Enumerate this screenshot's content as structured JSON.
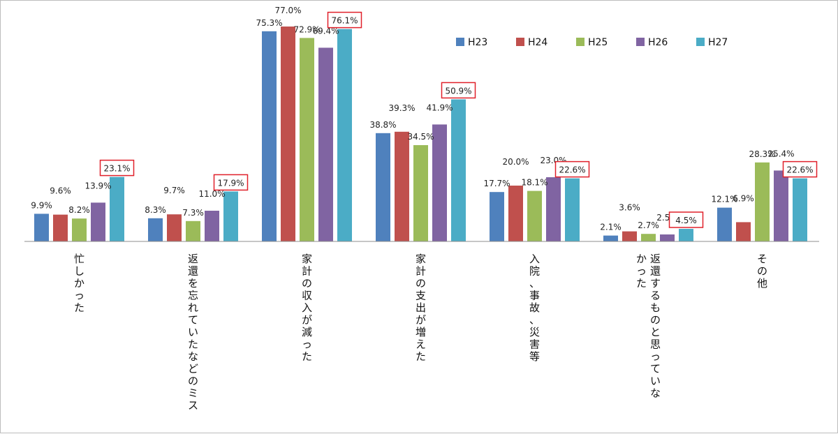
{
  "chart_data": {
    "type": "bar",
    "categories": [
      "忙しかった",
      "返還を忘れていたなどのミス",
      "家計の収入が減った",
      "家計の支出が増えた",
      "入院、事故、災害等",
      "返還するものと思っていなかった",
      "その他"
    ],
    "category_lines": [
      [
        "忙しかった"
      ],
      [
        "返還を忘れていたなどのミス"
      ],
      [
        "家計の収入が減った"
      ],
      [
        "家計の支出が増えた"
      ],
      [
        "入院、事故、災害等"
      ],
      [
        "返還するものと思っていな",
        "かった"
      ],
      [
        "その他"
      ]
    ],
    "series": [
      {
        "name": "H23",
        "color": "#4f81bd",
        "values": [
          9.9,
          8.3,
          75.3,
          38.8,
          17.7,
          2.1,
          12.1
        ],
        "labels": [
          "9.9%",
          "8.3%",
          "75.3%",
          "38.8%",
          "17.7%",
          "2.1%",
          "12.1%"
        ]
      },
      {
        "name": "H24",
        "color": "#c0504d",
        "values": [
          9.6,
          9.7,
          77.0,
          39.3,
          20.0,
          3.6,
          6.9
        ],
        "labels": [
          "9.6%",
          "9.7%",
          "77.0%",
          "39.3%",
          "20.0%",
          "3.6%",
          "6.9%"
        ]
      },
      {
        "name": "H25",
        "color": "#9bbb59",
        "values": [
          8.2,
          7.3,
          72.9,
          34.5,
          18.1,
          2.7,
          28.3
        ],
        "labels": [
          "8.2%",
          "7.3%",
          "72.9%",
          "34.5%",
          "18.1%",
          "2.7%",
          "28.3%"
        ]
      },
      {
        "name": "H26",
        "color": "#8064a2",
        "values": [
          13.9,
          11.0,
          69.4,
          41.9,
          23.0,
          2.5,
          25.4
        ],
        "labels": [
          "13.9%",
          "11.0%",
          "69.4%",
          "41.9%",
          "23.0%",
          "2.5%",
          "25.4%"
        ]
      },
      {
        "name": "H27",
        "color": "#4bacc6",
        "values": [
          23.1,
          17.9,
          76.1,
          50.9,
          22.6,
          4.5,
          22.6
        ],
        "labels": [
          "23.1%",
          "17.9%",
          "76.1%",
          "50.9%",
          "22.6%",
          "4.5%",
          "22.6%"
        ],
        "highlighted": true
      }
    ],
    "highlight_color": "#e0202a",
    "ylim": [
      0,
      80
    ],
    "legend_position": "top-right",
    "grid": false
  }
}
